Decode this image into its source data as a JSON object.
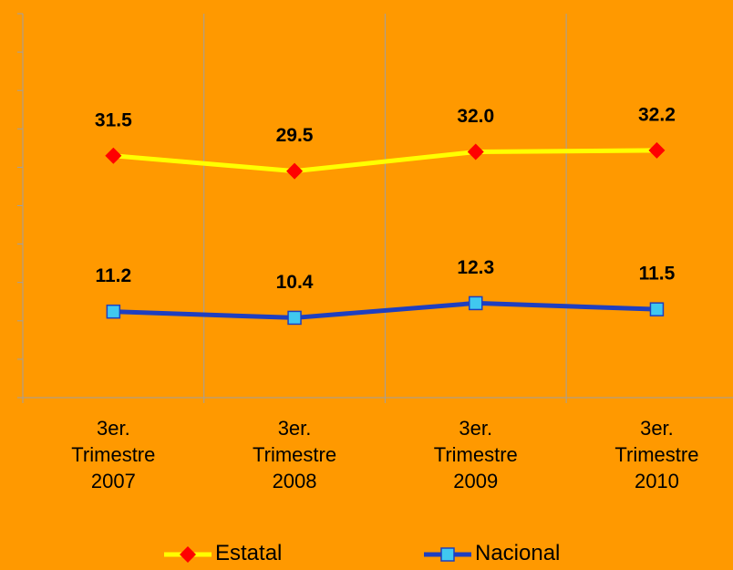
{
  "chart_data": {
    "type": "line",
    "categories": [
      "3er. Trimestre 2007",
      "3er. Trimestre 2008",
      "3er. Trimestre 2009",
      "3er. Trimestre 2010"
    ],
    "series": [
      {
        "name": "Estatal",
        "color": "#ffff00",
        "marker_color": "#ff0000",
        "marker": "diamond",
        "values": [
          31.5,
          29.5,
          32.0,
          32.2
        ],
        "value_labels": [
          "31.5",
          "29.5",
          "32.0",
          "32.2"
        ]
      },
      {
        "name": "Nacional",
        "color": "#1f3fbf",
        "marker_color": "#40c8f0",
        "marker": "square",
        "values": [
          11.2,
          10.4,
          12.3,
          11.5
        ],
        "value_labels": [
          "11.2",
          "10.4",
          "12.3",
          "11.5"
        ]
      }
    ],
    "ylim": [
      0,
      50
    ],
    "yticks": [
      0,
      5,
      10,
      15,
      20,
      25,
      30,
      35,
      40,
      45,
      50
    ],
    "grid": true
  }
}
